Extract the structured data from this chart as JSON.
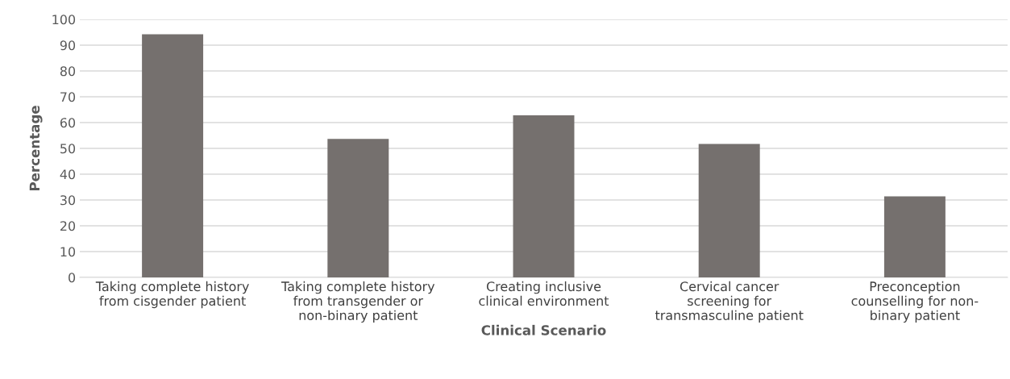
{
  "chart_data": {
    "type": "bar",
    "xlabel": "Clinical Scenario",
    "ylabel": "Percentage",
    "categories": [
      "Taking complete history\nfrom cisgender patient",
      "Taking complete history\nfrom transgender or\nnon-binary patient",
      "Creating inclusive\nclinical environment",
      "Cervical cancer\nscreening for\ntransmasculine patient",
      "Preconception\ncounselling for non-\nbinary patient"
    ],
    "values": [
      94.2,
      53.7,
      62.8,
      51.7,
      31.4
    ],
    "color": "#75706e",
    "ylim": [
      0,
      100
    ],
    "yticks": [
      0,
      10,
      20,
      30,
      40,
      50,
      60,
      70,
      80,
      90,
      100
    ],
    "grid": "y",
    "legend": false
  }
}
